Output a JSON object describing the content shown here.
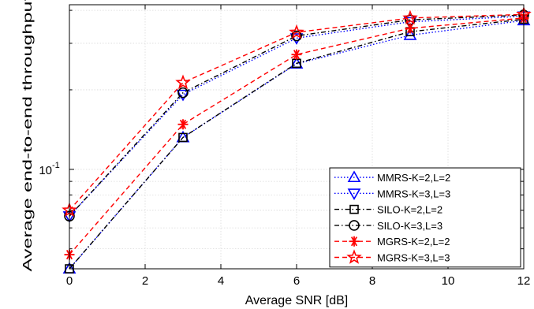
{
  "chart_data": {
    "type": "line",
    "xlabel": "Average SNR [dB]",
    "ylabel": "Average end-to-end throughput",
    "xlim": [
      0,
      12
    ],
    "ylim": [
      0.042,
      0.42
    ],
    "yscale": "log",
    "xticks": [
      "0",
      "2",
      "4",
      "6",
      "8",
      "10",
      "12"
    ],
    "ytick_labels": [
      {
        "value": 0.1,
        "mantissa": "10",
        "exponent": "-1"
      }
    ],
    "grid": true,
    "legend_position": "bottom-right",
    "x": [
      0,
      3,
      6,
      9,
      12
    ],
    "series": [
      {
        "name": "MMRS-K=2,L=2",
        "values": [
          0.042,
          0.132,
          0.251,
          0.322,
          0.366
        ],
        "color": "#0000ff",
        "dash": "dotted",
        "marker": "triangle-up"
      },
      {
        "name": "MMRS-K=3,L=3",
        "values": [
          0.0665,
          0.192,
          0.314,
          0.362,
          0.38
        ],
        "color": "#0000ff",
        "dash": "dotted",
        "marker": "triangle-down"
      },
      {
        "name": "SILO-K=2,L=2",
        "values": [
          0.042,
          0.132,
          0.252,
          0.332,
          0.37
        ],
        "color": "#000000",
        "dash": "dashdot",
        "marker": "square"
      },
      {
        "name": "SILO-K=3,L=3",
        "values": [
          0.0665,
          0.195,
          0.32,
          0.368,
          0.384
        ],
        "color": "#000000",
        "dash": "dashdot",
        "marker": "circle"
      },
      {
        "name": "MGRS-K=2,L=2",
        "values": [
          0.0475,
          0.148,
          0.272,
          0.342,
          0.374
        ],
        "color": "#ff0000",
        "dash": "dashed",
        "marker": "asterisk"
      },
      {
        "name": "MGRS-K=3,L=3",
        "values": [
          0.07,
          0.213,
          0.33,
          0.374,
          0.386
        ],
        "color": "#ff0000",
        "dash": "dashed",
        "marker": "star"
      }
    ]
  }
}
